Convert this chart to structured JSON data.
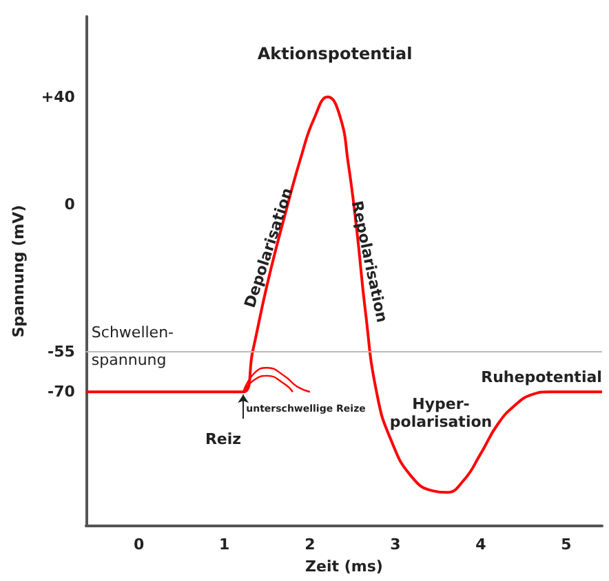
{
  "chart_data": {
    "type": "line",
    "title": "Aktionspotential",
    "xlabel": "Zeit (ms)",
    "ylabel": "Spannung (mV)",
    "xlim": [
      -0.62,
      5.42
    ],
    "xticks": [
      0,
      1,
      2,
      3,
      4,
      5
    ],
    "ylim": [
      -120,
      70
    ],
    "yticks": [
      {
        "value": 40,
        "label": "+40"
      },
      0,
      -55,
      -70
    ],
    "series": [
      {
        "color": "#ff0000",
        "x": [
          -0.62,
          1.22,
          1.33,
          1.5,
          1.7,
          1.9,
          2.05,
          2.21,
          2.35,
          2.45,
          2.55,
          2.65,
          2.78,
          2.95,
          3.2,
          3.45,
          3.6,
          3.8,
          4.0,
          4.2,
          4.4,
          4.6,
          4.8,
          5.42
        ],
        "values": [
          -70,
          -70,
          -55,
          -30,
          -5,
          18,
          32,
          40,
          33,
          15,
          -10,
          -40,
          -70,
          -88,
          -102,
          -107,
          -107.5,
          -103,
          -93,
          -82,
          -75,
          -71,
          -70,
          -70
        ]
      },
      {
        "color": "#ff0000",
        "x": [
          1.22,
          1.35,
          1.5,
          1.7,
          1.85,
          2.0
        ],
        "values": [
          -70,
          -63,
          -61,
          -64,
          -68,
          -70
        ]
      },
      {
        "color": "#ff0000",
        "x": [
          1.22,
          1.35,
          1.5,
          1.7,
          1.8
        ],
        "values": [
          -70,
          -65.5,
          -64,
          -67,
          -70
        ]
      }
    ],
    "ref_lines": [
      {
        "axis": "y",
        "value": -55,
        "label": "Schwellen-\nspannung",
        "color": "#bbbbbb"
      }
    ],
    "annotations": [
      "Depolarisation",
      "Repolarisation",
      "Ruhepotential",
      "Hyper-\npolarisation",
      "Reiz",
      "unterschwellige Reize"
    ],
    "grid": false,
    "marker": "none",
    "line_style": "solid"
  }
}
